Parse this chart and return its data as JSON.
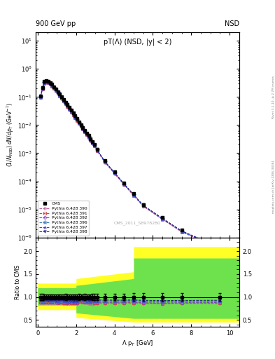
{
  "title_left": "900 GeV pp",
  "title_right": "NSD",
  "plot_title": "pT(Λ) (NSD, |y| < 2)",
  "watermark": "CMS_2011_S8978280",
  "ylabel_main": "(1/N$_{NSD}$) dN/dp$_T$ (GeV$^{-1}$)",
  "ylabel_ratio": "Ratio to CMS",
  "xlabel": "Λ p$_T$ [GeV]",
  "right_label": "Rivet 3.1.10, ≥ 2.7M events",
  "right_label2": "mcplots.cern.ch [arXiv:1306.3436]",
  "cms_x": [
    0.15,
    0.25,
    0.35,
    0.45,
    0.55,
    0.65,
    0.75,
    0.85,
    0.95,
    1.05,
    1.15,
    1.25,
    1.35,
    1.45,
    1.55,
    1.65,
    1.75,
    1.85,
    1.95,
    2.05,
    2.15,
    2.25,
    2.35,
    2.45,
    2.55,
    2.65,
    2.75,
    2.85,
    2.95,
    3.1,
    3.5,
    4.0,
    4.5,
    5.0,
    5.5,
    6.5,
    7.5,
    9.5
  ],
  "cms_y": [
    0.11,
    0.22,
    0.35,
    0.38,
    0.37,
    0.33,
    0.28,
    0.23,
    0.19,
    0.155,
    0.125,
    0.1,
    0.082,
    0.065,
    0.053,
    0.042,
    0.034,
    0.027,
    0.021,
    0.017,
    0.013,
    0.01,
    0.0082,
    0.0065,
    0.0052,
    0.0042,
    0.0033,
    0.0026,
    0.0021,
    0.0014,
    0.00055,
    0.00022,
    8.8e-05,
    3.6e-05,
    1.5e-05,
    5.2e-06,
    1.85e-06,
    4.75e-07
  ],
  "cms_yerr": [
    0.008,
    0.015,
    0.02,
    0.02,
    0.02,
    0.018,
    0.016,
    0.013,
    0.011,
    0.009,
    0.007,
    0.006,
    0.005,
    0.004,
    0.003,
    0.0025,
    0.002,
    0.0016,
    0.0012,
    0.001,
    0.0008,
    0.0006,
    0.0005,
    0.0004,
    0.0003,
    0.00025,
    0.0002,
    0.00016,
    0.00013,
    0.0001,
    4e-05,
    1.6e-05,
    6.5e-06,
    2.8e-06,
    1.2e-06,
    4e-07,
    1.5e-07,
    4e-08
  ],
  "mc390_y": [
    0.095,
    0.19,
    0.305,
    0.33,
    0.32,
    0.286,
    0.243,
    0.199,
    0.164,
    0.134,
    0.108,
    0.087,
    0.07,
    0.056,
    0.045,
    0.036,
    0.029,
    0.023,
    0.018,
    0.0144,
    0.0115,
    0.0091,
    0.0072,
    0.0057,
    0.0045,
    0.0036,
    0.0028,
    0.0022,
    0.0018,
    0.0012,
    0.00047,
    0.000188,
    7.5e-05,
    3.1e-05,
    1.28e-05,
    4.4e-06,
    1.58e-06,
    4.05e-07
  ],
  "mc391_y": [
    0.097,
    0.194,
    0.31,
    0.336,
    0.326,
    0.291,
    0.247,
    0.202,
    0.167,
    0.136,
    0.11,
    0.089,
    0.071,
    0.057,
    0.046,
    0.037,
    0.0295,
    0.0234,
    0.0183,
    0.0147,
    0.0117,
    0.0093,
    0.0073,
    0.0058,
    0.0046,
    0.0037,
    0.0029,
    0.0023,
    0.00183,
    0.00122,
    0.000478,
    0.000191,
    7.65e-05,
    3.15e-05,
    1.3e-05,
    4.47e-06,
    1.6e-06,
    4.11e-07
  ],
  "mc392_y": [
    0.098,
    0.196,
    0.314,
    0.34,
    0.33,
    0.295,
    0.25,
    0.205,
    0.169,
    0.138,
    0.111,
    0.09,
    0.072,
    0.058,
    0.046,
    0.037,
    0.03,
    0.0237,
    0.0186,
    0.0149,
    0.0119,
    0.0094,
    0.0074,
    0.0059,
    0.0047,
    0.0037,
    0.0029,
    0.00232,
    0.00185,
    0.00124,
    0.000484,
    0.000194,
    7.76e-05,
    3.19e-05,
    1.31e-05,
    4.53e-06,
    1.62e-06,
    4.17e-07
  ],
  "mc396_y": [
    0.1,
    0.2,
    0.32,
    0.347,
    0.337,
    0.301,
    0.255,
    0.209,
    0.172,
    0.141,
    0.114,
    0.092,
    0.074,
    0.059,
    0.047,
    0.038,
    0.03,
    0.024,
    0.019,
    0.0152,
    0.0121,
    0.0096,
    0.0076,
    0.006,
    0.0048,
    0.0038,
    0.003,
    0.00238,
    0.0019,
    0.00127,
    0.000497,
    0.000199,
    7.96e-05,
    3.27e-05,
    1.35e-05,
    4.65e-06,
    1.66e-06,
    4.28e-07
  ],
  "mc397_y": [
    0.102,
    0.204,
    0.326,
    0.353,
    0.343,
    0.306,
    0.26,
    0.213,
    0.175,
    0.143,
    0.116,
    0.094,
    0.075,
    0.06,
    0.048,
    0.038,
    0.031,
    0.0244,
    0.0191,
    0.0153,
    0.0122,
    0.0097,
    0.0077,
    0.0061,
    0.0048,
    0.0039,
    0.003,
    0.00241,
    0.00192,
    0.00129,
    0.000504,
    0.000202,
    8.07e-05,
    3.32e-05,
    1.37e-05,
    4.72e-06,
    1.69e-06,
    4.34e-07
  ],
  "mc398_y": [
    0.103,
    0.206,
    0.33,
    0.357,
    0.347,
    0.31,
    0.263,
    0.216,
    0.178,
    0.146,
    0.118,
    0.095,
    0.076,
    0.061,
    0.049,
    0.039,
    0.0315,
    0.0248,
    0.0194,
    0.0156,
    0.0124,
    0.0099,
    0.0078,
    0.0062,
    0.0049,
    0.0039,
    0.0031,
    0.00245,
    0.00195,
    0.00131,
    0.000513,
    0.000205,
    8.2e-05,
    3.37e-05,
    1.39e-05,
    4.8e-06,
    1.71e-06,
    4.41e-07
  ],
  "mc390_color": "#c060a0",
  "mc391_color": "#d04040",
  "mc392_color": "#8040c0",
  "mc396_color": "#4080c0",
  "mc397_color": "#4040d0",
  "mc398_color": "#202080",
  "mc390_marker": "o",
  "mc391_marker": "s",
  "mc392_marker": "D",
  "mc396_marker": "*",
  "mc397_marker": "^",
  "mc398_marker": "v",
  "legend_labels": [
    "CMS",
    "Pythia 6.428 390",
    "Pythia 6.428 391",
    "Pythia 6.428 392",
    "Pythia 6.428 396",
    "Pythia 6.428 397",
    "Pythia 6.428 398"
  ],
  "ylim_main": [
    1e-06,
    20
  ],
  "ylim_ratio": [
    0.35,
    2.3
  ],
  "xlim": [
    -0.1,
    10.5
  ],
  "band_yellow": {
    "x": [
      0.0,
      2.0,
      2.0,
      5.0,
      5.0,
      6.0,
      6.0,
      10.5
    ],
    "ytop": [
      1.3,
      1.3,
      1.4,
      1.55,
      2.1,
      2.1,
      2.1,
      2.1
    ],
    "ybot": [
      0.72,
      0.72,
      0.55,
      0.45,
      0.45,
      0.45,
      0.45,
      0.45
    ]
  },
  "band_green": {
    "x": [
      0.0,
      2.0,
      2.0,
      5.0,
      5.0,
      6.0,
      6.0,
      10.5
    ],
    "ytop": [
      1.2,
      1.2,
      1.25,
      1.4,
      1.85,
      1.85,
      1.85,
      1.85
    ],
    "ybot": [
      0.82,
      0.82,
      0.65,
      0.53,
      0.53,
      0.53,
      0.53,
      0.53
    ]
  }
}
